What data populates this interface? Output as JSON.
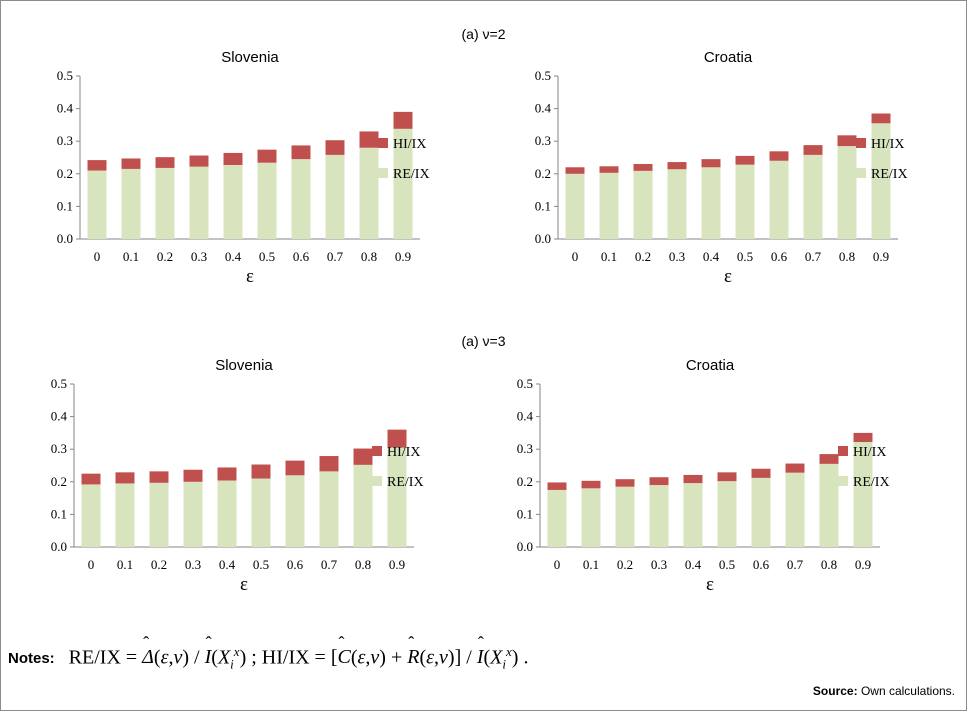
{
  "panels": [
    {
      "title": "(a) ν=2"
    },
    {
      "title": "(a) ν=3"
    }
  ],
  "colors": {
    "re": "#d7e4bd",
    "hi": "#c0504d",
    "axis": "#868686"
  },
  "chart_data": [
    {
      "type": "bar",
      "stacked": true,
      "title": "Slovenia",
      "categories": [
        "0",
        "0.1",
        "0.2",
        "0.3",
        "0.4",
        "0.5",
        "0.6",
        "0.7",
        "0.8",
        "0.9"
      ],
      "xlabel": "ε",
      "ylim": [
        0,
        0.5
      ],
      "yticks": [
        "0.0",
        "0.1",
        "0.2",
        "0.3",
        "0.4",
        "0.5"
      ],
      "legend": "right",
      "series": [
        {
          "name": "RE/IX",
          "values": [
            0.21,
            0.215,
            0.218,
            0.222,
            0.227,
            0.234,
            0.245,
            0.258,
            0.28,
            0.338
          ]
        },
        {
          "name": "HI/IX",
          "values": [
            0.032,
            0.032,
            0.033,
            0.034,
            0.037,
            0.04,
            0.042,
            0.045,
            0.05,
            0.052
          ]
        }
      ]
    },
    {
      "type": "bar",
      "stacked": true,
      "title": "Croatia",
      "categories": [
        "0",
        "0.1",
        "0.2",
        "0.3",
        "0.4",
        "0.5",
        "0.6",
        "0.7",
        "0.8",
        "0.9"
      ],
      "xlabel": "ε",
      "ylim": [
        0,
        0.5
      ],
      "yticks": [
        "0.0",
        "0.1",
        "0.2",
        "0.3",
        "0.4",
        "0.5"
      ],
      "legend": "right",
      "series": [
        {
          "name": "RE/IX",
          "values": [
            0.2,
            0.203,
            0.209,
            0.214,
            0.22,
            0.228,
            0.24,
            0.258,
            0.285,
            0.355
          ]
        },
        {
          "name": "HI/IX",
          "values": [
            0.02,
            0.02,
            0.021,
            0.022,
            0.025,
            0.027,
            0.029,
            0.03,
            0.033,
            0.03
          ]
        }
      ]
    },
    {
      "type": "bar",
      "stacked": true,
      "title": "Slovenia",
      "categories": [
        "0",
        "0.1",
        "0.2",
        "0.3",
        "0.4",
        "0.5",
        "0.6",
        "0.7",
        "0.8",
        "0.9"
      ],
      "xlabel": "ε",
      "ylim": [
        0,
        0.5
      ],
      "yticks": [
        "0.0",
        "0.1",
        "0.2",
        "0.3",
        "0.4",
        "0.5"
      ],
      "legend": "right",
      "series": [
        {
          "name": "RE/IX",
          "values": [
            0.192,
            0.195,
            0.197,
            0.2,
            0.204,
            0.21,
            0.22,
            0.232,
            0.252,
            0.305
          ]
        },
        {
          "name": "HI/IX",
          "values": [
            0.033,
            0.034,
            0.035,
            0.037,
            0.04,
            0.043,
            0.045,
            0.047,
            0.05,
            0.055
          ]
        }
      ]
    },
    {
      "type": "bar",
      "stacked": true,
      "title": "Croatia",
      "categories": [
        "0",
        "0.1",
        "0.2",
        "0.3",
        "0.4",
        "0.5",
        "0.6",
        "0.7",
        "0.8",
        "0.9"
      ],
      "xlabel": "ε",
      "ylim": [
        0,
        0.5
      ],
      "yticks": [
        "0.0",
        "0.1",
        "0.2",
        "0.3",
        "0.4",
        "0.5"
      ],
      "legend": "right",
      "series": [
        {
          "name": "RE/IX",
          "values": [
            0.175,
            0.18,
            0.185,
            0.19,
            0.196,
            0.202,
            0.212,
            0.228,
            0.255,
            0.322
          ]
        },
        {
          "name": "HI/IX",
          "values": [
            0.023,
            0.023,
            0.023,
            0.024,
            0.025,
            0.027,
            0.028,
            0.028,
            0.03,
            0.028
          ]
        }
      ]
    }
  ],
  "notes": {
    "label": "Notes:",
    "formula_re_lhs": "RE/IX =",
    "formula_hi_lhs": "HI/IX ="
  },
  "source": {
    "label": "Source:",
    "text": "Own calculations."
  }
}
